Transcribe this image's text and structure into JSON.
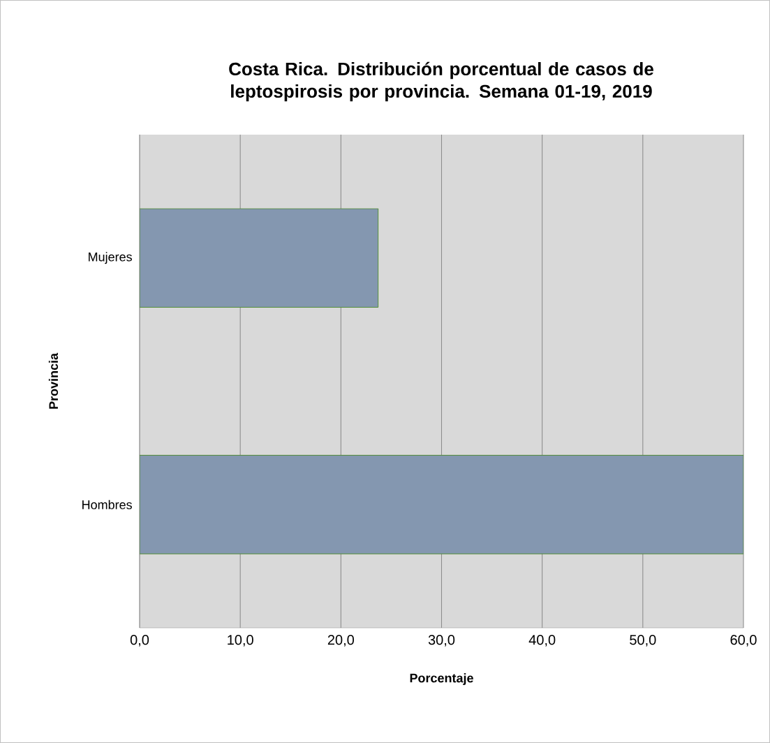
{
  "chart_data": {
    "type": "bar",
    "orientation": "horizontal",
    "title": "Costa Rica. Distribución porcentual de casos de leptospirosis por provincia. Semana 01-19, 2019",
    "xlabel": "Porcentaje",
    "ylabel": "Provincia",
    "categories": [
      "Mujeres",
      "Hombres"
    ],
    "values": [
      23.7,
      60
    ],
    "color": "#8497b0",
    "xlim": [
      0,
      60
    ],
    "xticks": [
      {
        "value": 0,
        "label": "0,0"
      },
      {
        "value": 10,
        "label": "10,0"
      },
      {
        "value": 20,
        "label": "20,0"
      },
      {
        "value": 30,
        "label": "30,0"
      },
      {
        "value": 40,
        "label": "40,0"
      },
      {
        "value": 50,
        "label": "50,0"
      },
      {
        "value": 60,
        "label": "60,0"
      }
    ],
    "grid": "x"
  }
}
